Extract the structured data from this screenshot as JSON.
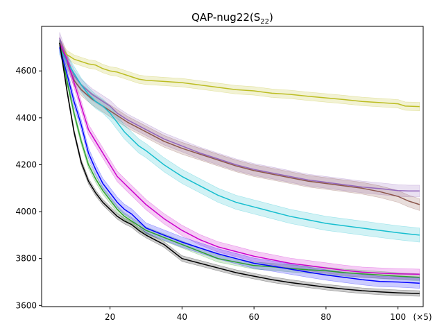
{
  "chart_data": {
    "type": "line",
    "title": "QAP-nug22(S",
    "title_sub": "22",
    "title_close": ")",
    "x_multiplier_label": "(×5)",
    "xlim": [
      1,
      107
    ],
    "ylim": [
      3595,
      4790
    ],
    "x_ticks": [
      20,
      40,
      60,
      80,
      100
    ],
    "y_ticks": [
      3600,
      3800,
      4000,
      4200,
      4400,
      4600
    ],
    "grid": false,
    "bands": true,
    "series": [
      {
        "color": "#bcbd22",
        "band": 18,
        "x": [
          6,
          8,
          10,
          12,
          14,
          16,
          18,
          20,
          22,
          25,
          28,
          30,
          35,
          40,
          45,
          50,
          55,
          60,
          65,
          70,
          75,
          80,
          85,
          90,
          95,
          100,
          102,
          106
        ],
        "y": [
          4720,
          4670,
          4650,
          4640,
          4630,
          4625,
          4610,
          4600,
          4595,
          4580,
          4565,
          4560,
          4555,
          4550,
          4540,
          4530,
          4520,
          4515,
          4505,
          4500,
          4492,
          4485,
          4478,
          4470,
          4465,
          4460,
          4450,
          4448
        ]
      },
      {
        "color": "#9467bd",
        "band": 25,
        "x": [
          6,
          8,
          10,
          12,
          15,
          18,
          20,
          22,
          25,
          30,
          35,
          40,
          45,
          50,
          55,
          60,
          65,
          70,
          75,
          80,
          85,
          90,
          95,
          100,
          103,
          106
        ],
        "y": [
          4740,
          4650,
          4580,
          4540,
          4500,
          4470,
          4450,
          4420,
          4390,
          4350,
          4310,
          4280,
          4250,
          4225,
          4200,
          4180,
          4165,
          4150,
          4135,
          4125,
          4115,
          4105,
          4098,
          4090,
          4088,
          4088
        ]
      },
      {
        "color": "#8c564b",
        "band": 25,
        "x": [
          6,
          8,
          10,
          12,
          15,
          18,
          20,
          22,
          25,
          30,
          35,
          40,
          45,
          50,
          55,
          60,
          65,
          70,
          75,
          80,
          85,
          90,
          95,
          100,
          103,
          106
        ],
        "y": [
          4720,
          4640,
          4560,
          4520,
          4480,
          4450,
          4430,
          4410,
          4380,
          4340,
          4300,
          4270,
          4245,
          4220,
          4195,
          4175,
          4160,
          4145,
          4130,
          4120,
          4110,
          4100,
          4085,
          4065,
          4045,
          4030
        ]
      },
      {
        "color": "#17becf",
        "band": 30,
        "x": [
          6,
          8,
          10,
          12,
          14,
          16,
          18,
          20,
          22,
          24,
          26,
          28,
          30,
          35,
          40,
          45,
          50,
          55,
          60,
          65,
          70,
          75,
          80,
          85,
          90,
          95,
          100,
          103,
          106
        ],
        "y": [
          4700,
          4640,
          4590,
          4540,
          4500,
          4470,
          4450,
          4420,
          4380,
          4340,
          4310,
          4280,
          4260,
          4200,
          4150,
          4110,
          4070,
          4040,
          4020,
          4000,
          3980,
          3965,
          3950,
          3940,
          3930,
          3920,
          3910,
          3905,
          3900
        ]
      },
      {
        "color": "#cc00cc",
        "band": 22,
        "x": [
          6,
          8,
          10,
          12,
          14,
          16,
          18,
          20,
          22,
          24,
          26,
          28,
          30,
          35,
          40,
          45,
          50,
          55,
          60,
          65,
          70,
          75,
          80,
          85,
          90,
          95,
          100,
          106
        ],
        "y": [
          4720,
          4650,
          4550,
          4450,
          4350,
          4300,
          4250,
          4200,
          4150,
          4120,
          4090,
          4060,
          4030,
          3970,
          3920,
          3880,
          3850,
          3830,
          3810,
          3795,
          3780,
          3770,
          3760,
          3750,
          3742,
          3738,
          3735,
          3733
        ]
      },
      {
        "color": "#2ca02c",
        "band": 15,
        "x": [
          6,
          8,
          10,
          12,
          14,
          16,
          18,
          20,
          22,
          24,
          26,
          28,
          30,
          35,
          40,
          45,
          50,
          55,
          60,
          65,
          70,
          75,
          80,
          85,
          90,
          95,
          100,
          106
        ],
        "y": [
          4720,
          4560,
          4420,
          4300,
          4200,
          4140,
          4090,
          4050,
          4010,
          3980,
          3960,
          3940,
          3920,
          3890,
          3860,
          3830,
          3800,
          3785,
          3770,
          3765,
          3758,
          3752,
          3748,
          3740,
          3735,
          3730,
          3725,
          3720
        ]
      },
      {
        "color": "#0000ff",
        "band": 22,
        "x": [
          6,
          8,
          10,
          12,
          14,
          16,
          18,
          20,
          22,
          24,
          26,
          28,
          30,
          35,
          40,
          45,
          50,
          55,
          60,
          65,
          70,
          75,
          80,
          85,
          90,
          95,
          100,
          106
        ],
        "y": [
          4700,
          4590,
          4470,
          4370,
          4250,
          4180,
          4120,
          4080,
          4040,
          4010,
          3990,
          3960,
          3930,
          3900,
          3870,
          3845,
          3820,
          3800,
          3780,
          3768,
          3755,
          3742,
          3730,
          3720,
          3710,
          3702,
          3700,
          3695
        ]
      },
      {
        "color": "#000000",
        "band": 12,
        "x": [
          6,
          8,
          10,
          12,
          14,
          16,
          18,
          20,
          22,
          24,
          26,
          28,
          30,
          35,
          40,
          45,
          50,
          55,
          60,
          65,
          70,
          75,
          80,
          85,
          90,
          95,
          100,
          106
        ],
        "y": [
          4720,
          4520,
          4340,
          4210,
          4130,
          4080,
          4040,
          4010,
          3980,
          3960,
          3945,
          3920,
          3900,
          3860,
          3800,
          3780,
          3760,
          3740,
          3725,
          3710,
          3698,
          3688,
          3678,
          3670,
          3663,
          3658,
          3654,
          3651
        ]
      }
    ]
  }
}
